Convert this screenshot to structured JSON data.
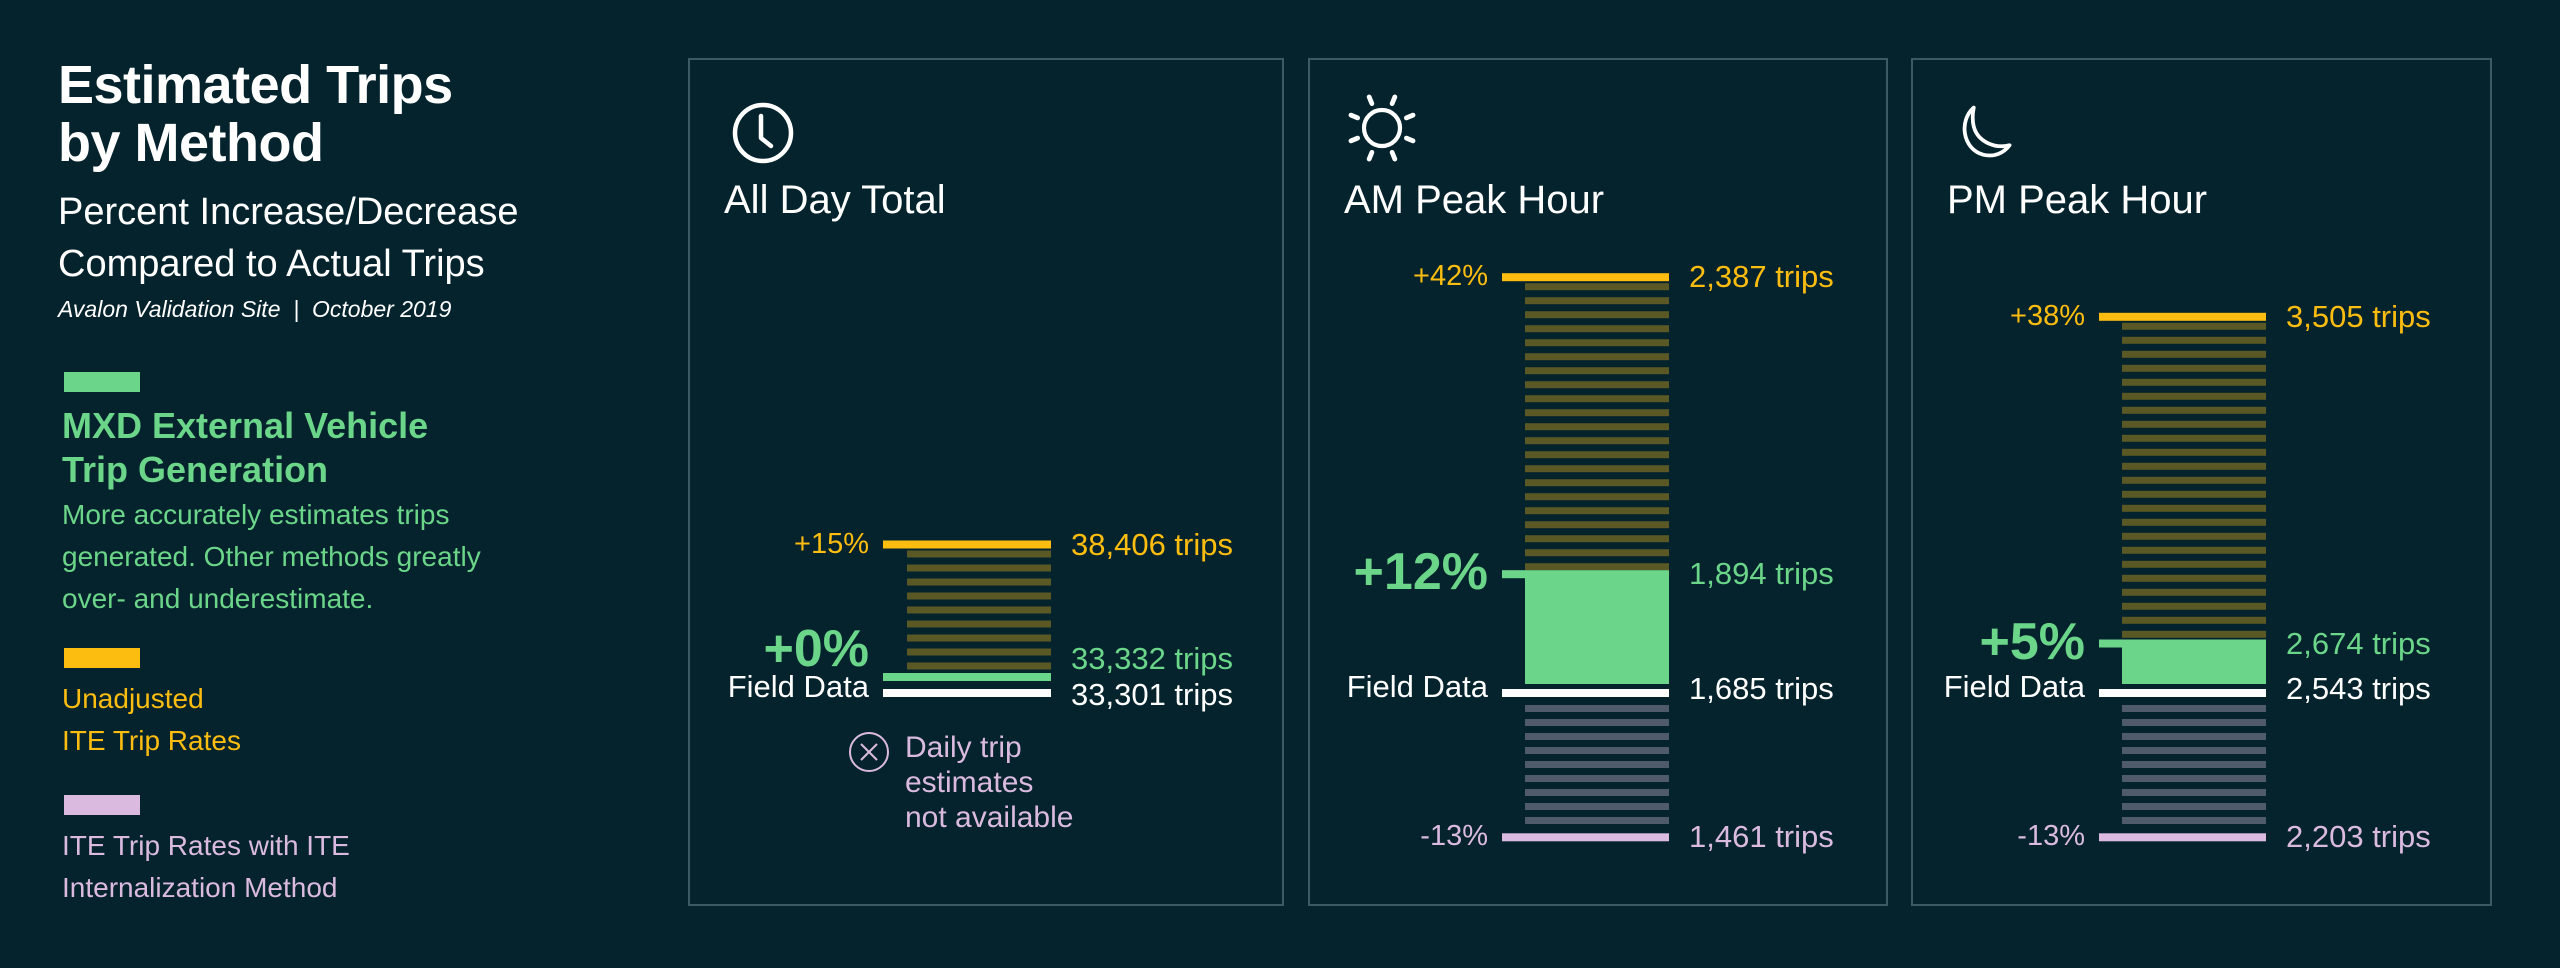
{
  "header": {
    "title_line1": "Estimated Trips",
    "title_line2": "by Method",
    "subtitle_line1": "Percent Increase/Decrease",
    "subtitle_line2": "Compared to Actual Trips",
    "site": "Avalon Validation Site  |  October 2019"
  },
  "legend": {
    "mxd": {
      "title_line1": "MXD External Vehicle",
      "title_line2": "Trip Generation",
      "desc_line1": "More accurately estimates trips",
      "desc_line2": "generated. Other methods greatly",
      "desc_line3": "over- and underestimate.",
      "color": "#6bd68a"
    },
    "ite": {
      "label_line1": "Unadjusted",
      "label_line2": "ITE Trip Rates",
      "color": "#fdbd10"
    },
    "internal": {
      "label_line1": "ITE Trip Rates with ITE",
      "label_line2": "Internalization Method",
      "color": "#dbbae0"
    }
  },
  "colors": {
    "background": "#04232c",
    "panel_border": "#3b5a62",
    "field": "#ffffff",
    "ite_hatch": "#5a5825",
    "internal_hatch": "#4f5a6b"
  },
  "chart_data": {
    "type": "bar",
    "title": "Estimated Trips by Method",
    "subtitle": "Percent Increase/Decrease Compared to Actual Trips",
    "baseline_label": "Field Data",
    "unit_suffix": " trips",
    "panels": [
      {
        "name": "All Day Total",
        "icon": "clock-icon",
        "field_data": {
          "trips": 33301,
          "label": "33,301 trips"
        },
        "mxd": {
          "pct": 0,
          "pct_label": "+0%",
          "trips": 33332,
          "label": "33,332 trips"
        },
        "ite": {
          "pct": 15,
          "pct_label": "+15%",
          "trips": 38406,
          "label": "38,406 trips"
        },
        "internal": null,
        "note_line1": "Daily trip",
        "note_line2": "estimates",
        "note_line3": "not available"
      },
      {
        "name": "AM Peak Hour",
        "icon": "sun-icon",
        "field_data": {
          "trips": 1685,
          "label": "1,685 trips"
        },
        "mxd": {
          "pct": 12,
          "pct_label": "+12%",
          "trips": 1894,
          "label": "1,894 trips"
        },
        "ite": {
          "pct": 42,
          "pct_label": "+42%",
          "trips": 2387,
          "label": "2,387 trips"
        },
        "internal": {
          "pct": -13,
          "pct_label": "-13%",
          "trips": 1461,
          "label": "1,461 trips"
        }
      },
      {
        "name": "PM Peak Hour",
        "icon": "moon-icon",
        "field_data": {
          "trips": 2543,
          "label": "2,543 trips"
        },
        "mxd": {
          "pct": 5,
          "pct_label": "+5%",
          "trips": 2674,
          "label": "2,674 trips"
        },
        "ite": {
          "pct": 38,
          "pct_label": "+38%",
          "trips": 3505,
          "label": "3,505 trips"
        },
        "internal": {
          "pct": -13,
          "pct_label": "-13%",
          "trips": 2203,
          "label": "2,203 trips"
        }
      }
    ]
  }
}
